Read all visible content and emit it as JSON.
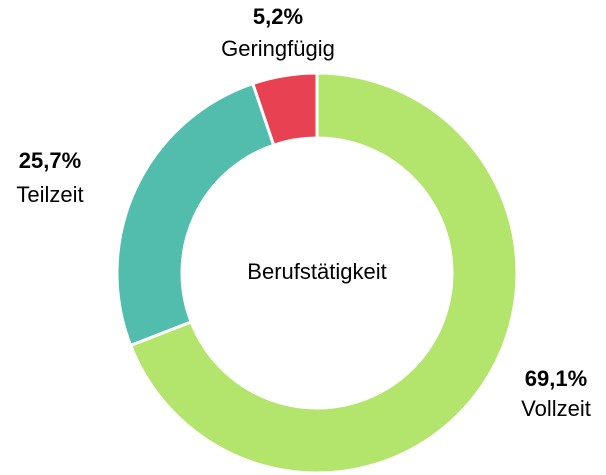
{
  "chart_data": {
    "type": "donut",
    "title": "Berufstätigkeit",
    "categories": [
      "Vollzeit",
      "Teilzeit",
      "Geringfügig"
    ],
    "values": [
      69.1,
      25.7,
      5.2
    ],
    "value_labels": [
      "69,1%",
      "25,7%",
      "5,2%"
    ],
    "colors": [
      "#b3e46b",
      "#52bcad",
      "#e84152"
    ]
  }
}
